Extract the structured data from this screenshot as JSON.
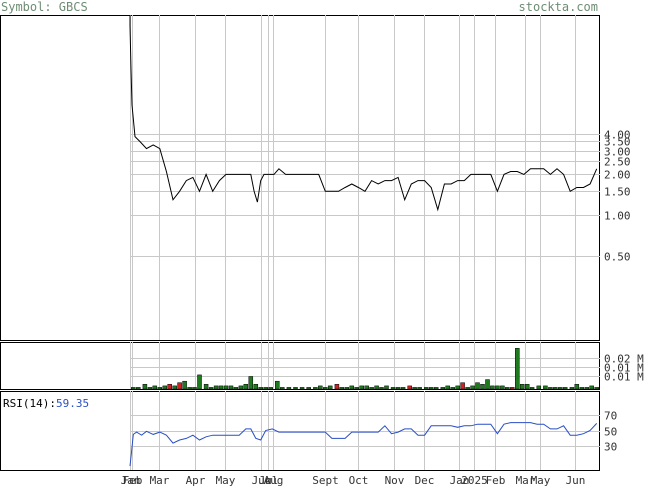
{
  "header": {
    "symbol_label": "Symbol: GBCS",
    "site": "stockta.com"
  },
  "colors": {
    "header_text": "#6e8d73",
    "price_line": "#000000",
    "grid": "#c8c8c8",
    "vol_up": "#1f7a1f",
    "vol_down": "#cc2222",
    "rsi_line": "#2a4fc4",
    "rsi_value": "#2a4fc4"
  },
  "chart_data": [
    {
      "type": "line",
      "title": "",
      "scale": "log",
      "y_ticks": [
        "4.00",
        "3.50",
        "3.00",
        "2.50",
        "2.00",
        "1.50",
        "1.00",
        "0.50"
      ],
      "y_tick_values": [
        4.0,
        3.5,
        3.0,
        2.5,
        2.0,
        1.5,
        1.0,
        0.5
      ],
      "x_labels": [
        "Jan",
        "Feb",
        "Mar",
        "Apr",
        "May",
        "Jun",
        "Jul",
        "Aug",
        "Sept",
        "Oct",
        "Nov",
        "Dec",
        "Jan",
        "2025",
        "Feb",
        "Mar",
        "May",
        "Jun"
      ],
      "x_label_positions": [
        0.0,
        0.05,
        0.88,
        1.97,
        2.88,
        3.97,
        4.18,
        4.32,
        5.88,
        6.88,
        7.98,
        8.88,
        9.93,
        10.4,
        11.02,
        11.93,
        12.38,
        13.45
      ],
      "x_range": [
        0,
        14.2
      ],
      "ylim": [
        0.12,
        30
      ],
      "series": [
        {
          "x": [
            -0.3,
            0.0,
            0.03,
            0.06,
            0.15,
            0.3,
            0.5,
            0.7,
            0.9,
            1.1,
            1.3,
            1.5,
            1.7,
            1.9,
            2.1,
            2.3,
            2.5,
            2.7,
            2.9,
            3.1,
            3.3,
            3.5,
            3.65,
            3.75,
            3.85,
            3.95,
            4.05,
            4.2,
            4.35,
            4.5,
            4.7,
            4.9,
            5.1,
            5.3,
            5.5,
            5.7,
            5.9,
            6.1,
            6.3,
            6.5,
            6.7,
            6.9,
            7.1,
            7.3,
            7.5,
            7.7,
            7.9,
            8.1,
            8.3,
            8.5,
            8.7,
            8.9,
            9.1,
            9.3,
            9.5,
            9.7,
            9.9,
            10.1,
            10.3,
            10.5,
            10.7,
            10.9,
            11.1,
            11.3,
            11.5,
            11.7,
            11.9,
            12.1,
            12.3,
            12.5,
            12.7,
            12.9,
            13.1,
            13.3,
            13.5,
            13.7,
            13.9,
            14.1
          ],
          "y": [
            35,
            25,
            12,
            6.5,
            3.8,
            3.5,
            3.1,
            3.3,
            3.1,
            2.1,
            1.3,
            1.5,
            1.8,
            1.9,
            1.5,
            2.0,
            1.5,
            1.8,
            2.0,
            2.0,
            2.0,
            2.0,
            2.0,
            1.5,
            1.25,
            1.8,
            2.0,
            2.0,
            2.0,
            2.2,
            2.0,
            2.0,
            2.0,
            2.0,
            2.0,
            2.0,
            1.5,
            1.5,
            1.5,
            1.6,
            1.7,
            1.6,
            1.5,
            1.8,
            1.7,
            1.8,
            1.8,
            1.9,
            1.3,
            1.7,
            1.8,
            1.8,
            1.6,
            1.1,
            1.7,
            1.7,
            1.8,
            1.8,
            2.0,
            2.0,
            2.0,
            2.0,
            1.5,
            2.0,
            2.1,
            2.1,
            2.0,
            2.2,
            2.2,
            2.2,
            2.0,
            2.2,
            2.0,
            1.5,
            1.6,
            1.6,
            1.7,
            2.2
          ]
        }
      ]
    },
    {
      "type": "bar",
      "title": "",
      "y_ticks": [
        "0.02 M",
        "0.01 M",
        "0.01 M"
      ],
      "y_tick_values": [
        0.02,
        0.014,
        0.008
      ],
      "ylim": [
        0,
        0.03
      ],
      "x_range": [
        0,
        14.2
      ],
      "bars": [
        {
          "x": 0.1,
          "v": 0.001,
          "d": 0
        },
        {
          "x": 0.25,
          "v": 0.001,
          "d": 0
        },
        {
          "x": 0.45,
          "v": 0.003,
          "d": 0
        },
        {
          "x": 0.6,
          "v": 0.001,
          "d": 0
        },
        {
          "x": 0.75,
          "v": 0.002,
          "d": 0
        },
        {
          "x": 0.9,
          "v": 0.001,
          "d": 0
        },
        {
          "x": 1.05,
          "v": 0.002,
          "d": 0
        },
        {
          "x": 1.2,
          "v": 0.003,
          "d": 1
        },
        {
          "x": 1.35,
          "v": 0.002,
          "d": 0
        },
        {
          "x": 1.5,
          "v": 0.004,
          "d": 1
        },
        {
          "x": 1.65,
          "v": 0.005,
          "d": 0
        },
        {
          "x": 1.8,
          "v": 0.001,
          "d": 0
        },
        {
          "x": 1.95,
          "v": 0.001,
          "d": 0
        },
        {
          "x": 2.1,
          "v": 0.009,
          "d": 0
        },
        {
          "x": 2.3,
          "v": 0.003,
          "d": 0
        },
        {
          "x": 2.45,
          "v": 0.001,
          "d": 0
        },
        {
          "x": 2.6,
          "v": 0.002,
          "d": 0
        },
        {
          "x": 2.75,
          "v": 0.002,
          "d": 0
        },
        {
          "x": 2.9,
          "v": 0.002,
          "d": 0
        },
        {
          "x": 3.05,
          "v": 0.002,
          "d": 0
        },
        {
          "x": 3.2,
          "v": 0.001,
          "d": 0
        },
        {
          "x": 3.35,
          "v": 0.002,
          "d": 0
        },
        {
          "x": 3.5,
          "v": 0.003,
          "d": 0
        },
        {
          "x": 3.65,
          "v": 0.008,
          "d": 0
        },
        {
          "x": 3.8,
          "v": 0.003,
          "d": 0
        },
        {
          "x": 3.95,
          "v": 0.001,
          "d": 0
        },
        {
          "x": 4.1,
          "v": 0.001,
          "d": 0
        },
        {
          "x": 4.25,
          "v": 0.001,
          "d": 0
        },
        {
          "x": 4.45,
          "v": 0.005,
          "d": 0
        },
        {
          "x": 4.6,
          "v": 0.001,
          "d": 0
        },
        {
          "x": 4.8,
          "v": 0.001,
          "d": 0
        },
        {
          "x": 5.0,
          "v": 0.001,
          "d": 0
        },
        {
          "x": 5.2,
          "v": 0.001,
          "d": 0
        },
        {
          "x": 5.4,
          "v": 0.001,
          "d": 0
        },
        {
          "x": 5.6,
          "v": 0.001,
          "d": 0
        },
        {
          "x": 5.75,
          "v": 0.002,
          "d": 0
        },
        {
          "x": 5.9,
          "v": 0.001,
          "d": 0
        },
        {
          "x": 6.05,
          "v": 0.002,
          "d": 0
        },
        {
          "x": 6.25,
          "v": 0.003,
          "d": 1
        },
        {
          "x": 6.4,
          "v": 0.001,
          "d": 0
        },
        {
          "x": 6.55,
          "v": 0.001,
          "d": 0
        },
        {
          "x": 6.7,
          "v": 0.002,
          "d": 0
        },
        {
          "x": 6.85,
          "v": 0.001,
          "d": 0
        },
        {
          "x": 7.0,
          "v": 0.002,
          "d": 0
        },
        {
          "x": 7.15,
          "v": 0.002,
          "d": 0
        },
        {
          "x": 7.3,
          "v": 0.001,
          "d": 0
        },
        {
          "x": 7.45,
          "v": 0.002,
          "d": 0
        },
        {
          "x": 7.6,
          "v": 0.001,
          "d": 0
        },
        {
          "x": 7.75,
          "v": 0.002,
          "d": 0
        },
        {
          "x": 7.95,
          "v": 0.001,
          "d": 0
        },
        {
          "x": 8.1,
          "v": 0.001,
          "d": 0
        },
        {
          "x": 8.25,
          "v": 0.001,
          "d": 0
        },
        {
          "x": 8.45,
          "v": 0.002,
          "d": 1
        },
        {
          "x": 8.6,
          "v": 0.001,
          "d": 0
        },
        {
          "x": 8.75,
          "v": 0.001,
          "d": 0
        },
        {
          "x": 8.95,
          "v": 0.001,
          "d": 0
        },
        {
          "x": 9.1,
          "v": 0.001,
          "d": 0
        },
        {
          "x": 9.25,
          "v": 0.001,
          "d": 0
        },
        {
          "x": 9.45,
          "v": 0.001,
          "d": 0
        },
        {
          "x": 9.6,
          "v": 0.002,
          "d": 0
        },
        {
          "x": 9.75,
          "v": 0.001,
          "d": 0
        },
        {
          "x": 9.9,
          "v": 0.002,
          "d": 0
        },
        {
          "x": 10.05,
          "v": 0.004,
          "d": 1
        },
        {
          "x": 10.2,
          "v": 0.001,
          "d": 0
        },
        {
          "x": 10.35,
          "v": 0.002,
          "d": 0
        },
        {
          "x": 10.5,
          "v": 0.004,
          "d": 0
        },
        {
          "x": 10.65,
          "v": 0.003,
          "d": 0
        },
        {
          "x": 10.8,
          "v": 0.006,
          "d": 0
        },
        {
          "x": 10.95,
          "v": 0.002,
          "d": 0
        },
        {
          "x": 11.1,
          "v": 0.002,
          "d": 0
        },
        {
          "x": 11.25,
          "v": 0.002,
          "d": 0
        },
        {
          "x": 11.4,
          "v": 0.001,
          "d": 0
        },
        {
          "x": 11.55,
          "v": 0.001,
          "d": 1
        },
        {
          "x": 11.7,
          "v": 0.026,
          "d": 0
        },
        {
          "x": 11.85,
          "v": 0.003,
          "d": 0
        },
        {
          "x": 12.0,
          "v": 0.003,
          "d": 0
        },
        {
          "x": 12.15,
          "v": 0.001,
          "d": 0
        },
        {
          "x": 12.35,
          "v": 0.002,
          "d": 0
        },
        {
          "x": 12.55,
          "v": 0.002,
          "d": 0
        },
        {
          "x": 12.7,
          "v": 0.001,
          "d": 0
        },
        {
          "x": 12.85,
          "v": 0.001,
          "d": 0
        },
        {
          "x": 13.0,
          "v": 0.001,
          "d": 0
        },
        {
          "x": 13.15,
          "v": 0.001,
          "d": 0
        },
        {
          "x": 13.35,
          "v": 0.001,
          "d": 0
        },
        {
          "x": 13.5,
          "v": 0.003,
          "d": 0
        },
        {
          "x": 13.65,
          "v": 0.001,
          "d": 0
        },
        {
          "x": 13.8,
          "v": 0.001,
          "d": 0
        },
        {
          "x": 13.95,
          "v": 0.002,
          "d": 0
        },
        {
          "x": 14.1,
          "v": 0.001,
          "d": 0
        }
      ]
    },
    {
      "type": "line",
      "title": "",
      "label": "RSI(14):",
      "value_text": "59.35",
      "y_ticks": [
        "70",
        "50",
        "30"
      ],
      "y_tick_values": [
        70,
        50,
        30
      ],
      "ylim": [
        0,
        100
      ],
      "x_range": [
        0,
        14.2
      ],
      "series": [
        {
          "x": [
            -0.3,
            0.0,
            0.05,
            0.1,
            0.2,
            0.35,
            0.5,
            0.7,
            0.9,
            1.1,
            1.3,
            1.5,
            1.7,
            1.9,
            2.1,
            2.3,
            2.5,
            2.7,
            2.9,
            3.1,
            3.3,
            3.5,
            3.65,
            3.8,
            3.95,
            4.1,
            4.3,
            4.5,
            4.7,
            4.9,
            5.1,
            5.3,
            5.5,
            5.7,
            5.9,
            6.1,
            6.3,
            6.5,
            6.7,
            6.9,
            7.1,
            7.3,
            7.5,
            7.7,
            7.9,
            8.1,
            8.3,
            8.5,
            8.7,
            8.9,
            9.1,
            9.3,
            9.5,
            9.7,
            9.9,
            10.1,
            10.3,
            10.5,
            10.7,
            10.9,
            11.1,
            11.3,
            11.5,
            11.7,
            11.9,
            12.1,
            12.3,
            12.5,
            12.7,
            12.9,
            13.1,
            13.3,
            13.5,
            13.7,
            13.9,
            14.1
          ],
          "y": [
            5,
            5,
            25,
            45,
            48,
            44,
            49,
            45,
            48,
            44,
            34,
            38,
            40,
            44,
            38,
            42,
            44,
            44,
            44,
            44,
            44,
            52,
            52,
            40,
            38,
            50,
            52,
            48,
            48,
            48,
            48,
            48,
            48,
            48,
            48,
            40,
            40,
            40,
            48,
            48,
            48,
            48,
            48,
            56,
            46,
            48,
            52,
            52,
            44,
            44,
            56,
            56,
            56,
            56,
            54,
            56,
            56,
            58,
            58,
            58,
            46,
            58,
            60,
            60,
            60,
            60,
            58,
            58,
            52,
            52,
            56,
            44,
            44,
            46,
            50,
            59
          ]
        }
      ]
    }
  ]
}
